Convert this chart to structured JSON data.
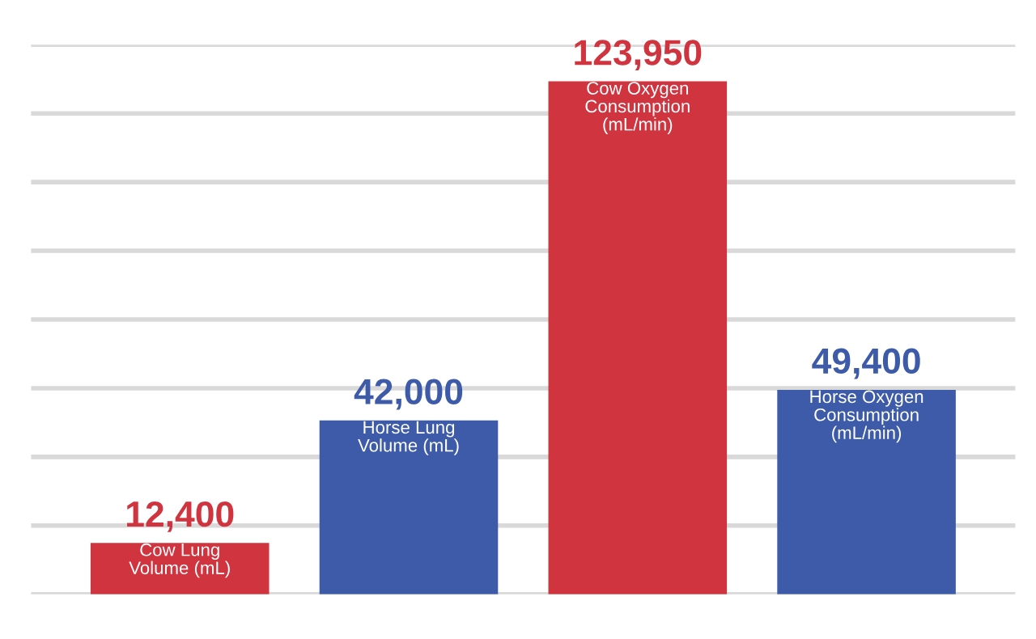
{
  "chart_data": {
    "type": "bar",
    "categories": [
      "Cow Lung\nVolume (mL)",
      "Horse Lung\nVolume (mL)",
      "Cow Oxygen\nConsumption\n(mL/min)",
      "Horse Oxygen\nConsumption\n(mL/min)"
    ],
    "values": [
      12400,
      42000,
      123950,
      49400
    ],
    "colors": [
      "#d0343f",
      "#3d5ba8",
      "#d0343f",
      "#3d5ba8"
    ],
    "value_labels": [
      "12,400",
      "42,000",
      "123,950",
      "49,400"
    ],
    "ylim": [
      0,
      132800
    ],
    "yticks": [
      {
        "value": 0,
        "label": null
      },
      {
        "value": 16600,
        "label": null
      },
      {
        "value": 33200,
        "label": null
      },
      {
        "value": 49800,
        "label": null
      },
      {
        "value": 66400,
        "label": null
      },
      {
        "value": 83000,
        "label": null
      },
      {
        "value": 99600,
        "label": null
      },
      {
        "value": 116200,
        "label": null
      },
      {
        "value": 132800,
        "label": null
      }
    ],
    "grid": "y"
  }
}
